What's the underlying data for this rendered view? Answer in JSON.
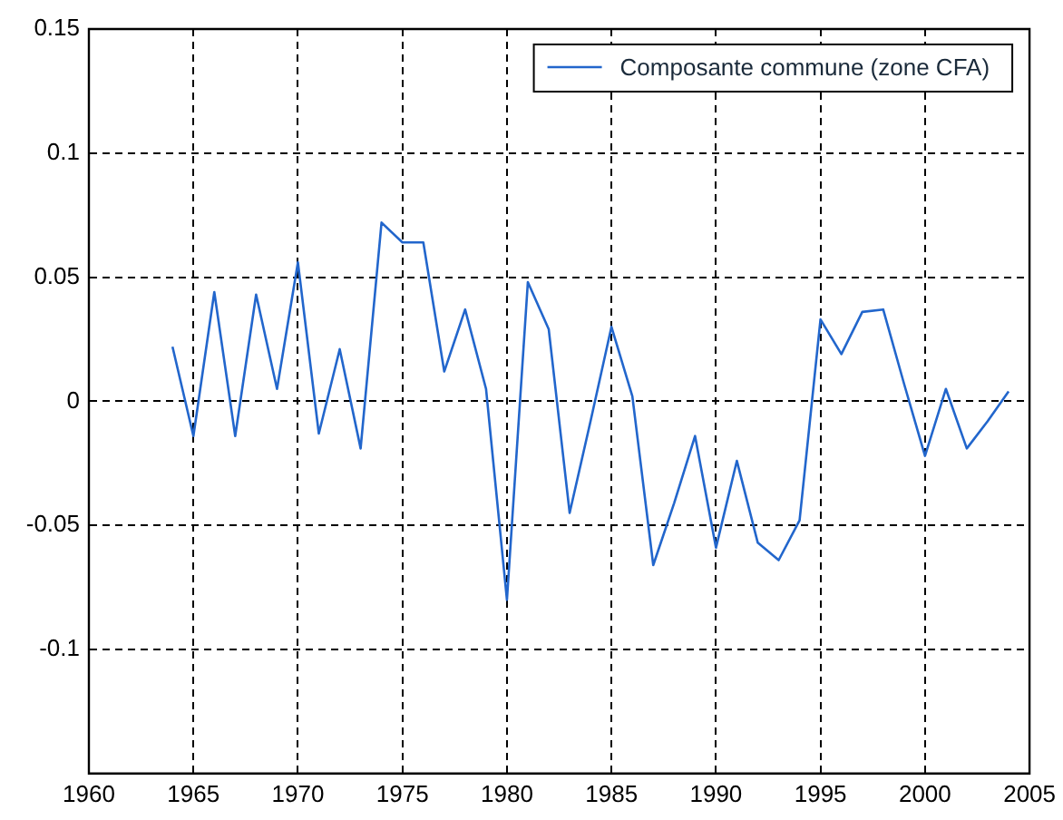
{
  "chart_data": {
    "type": "line",
    "x": [
      1964,
      1965,
      1966,
      1967,
      1968,
      1969,
      1970,
      1971,
      1972,
      1973,
      1974,
      1975,
      1976,
      1977,
      1978,
      1979,
      1980,
      1981,
      1982,
      1983,
      1984,
      1985,
      1986,
      1987,
      1988,
      1989,
      1990,
      1991,
      1992,
      1993,
      1994,
      1995,
      1996,
      1997,
      1998,
      1999,
      2000,
      2001,
      2002,
      2003,
      2004
    ],
    "series": [
      {
        "name": "Composante commune (zone CFA)",
        "color": "#2266cc",
        "values": [
          0.022,
          -0.014,
          0.044,
          -0.014,
          0.043,
          0.005,
          0.056,
          -0.013,
          0.021,
          -0.019,
          0.072,
          0.064,
          0.064,
          0.012,
          0.037,
          0.005,
          -0.08,
          0.048,
          0.029,
          -0.045,
          -0.008,
          0.03,
          0.002,
          -0.066,
          -0.041,
          -0.014,
          -0.059,
          -0.024,
          -0.057,
          -0.064,
          -0.048,
          0.033,
          0.019,
          0.036,
          0.037,
          0.007,
          -0.022,
          0.005,
          -0.019,
          -0.008,
          0.004
        ]
      }
    ],
    "xlim": [
      1960,
      2005
    ],
    "xticks": [
      1960,
      1965,
      1970,
      1975,
      1980,
      1985,
      1990,
      1995,
      2000,
      2005
    ],
    "ylim": [
      -0.15,
      0.15
    ],
    "yticks": [
      {
        "value": -0.15,
        "label": null
      },
      -0.1,
      -0.05,
      0,
      0.05,
      0.1,
      0.15
    ],
    "grid": true,
    "legend": "top right",
    "marker": "none",
    "line_style": "solid"
  }
}
